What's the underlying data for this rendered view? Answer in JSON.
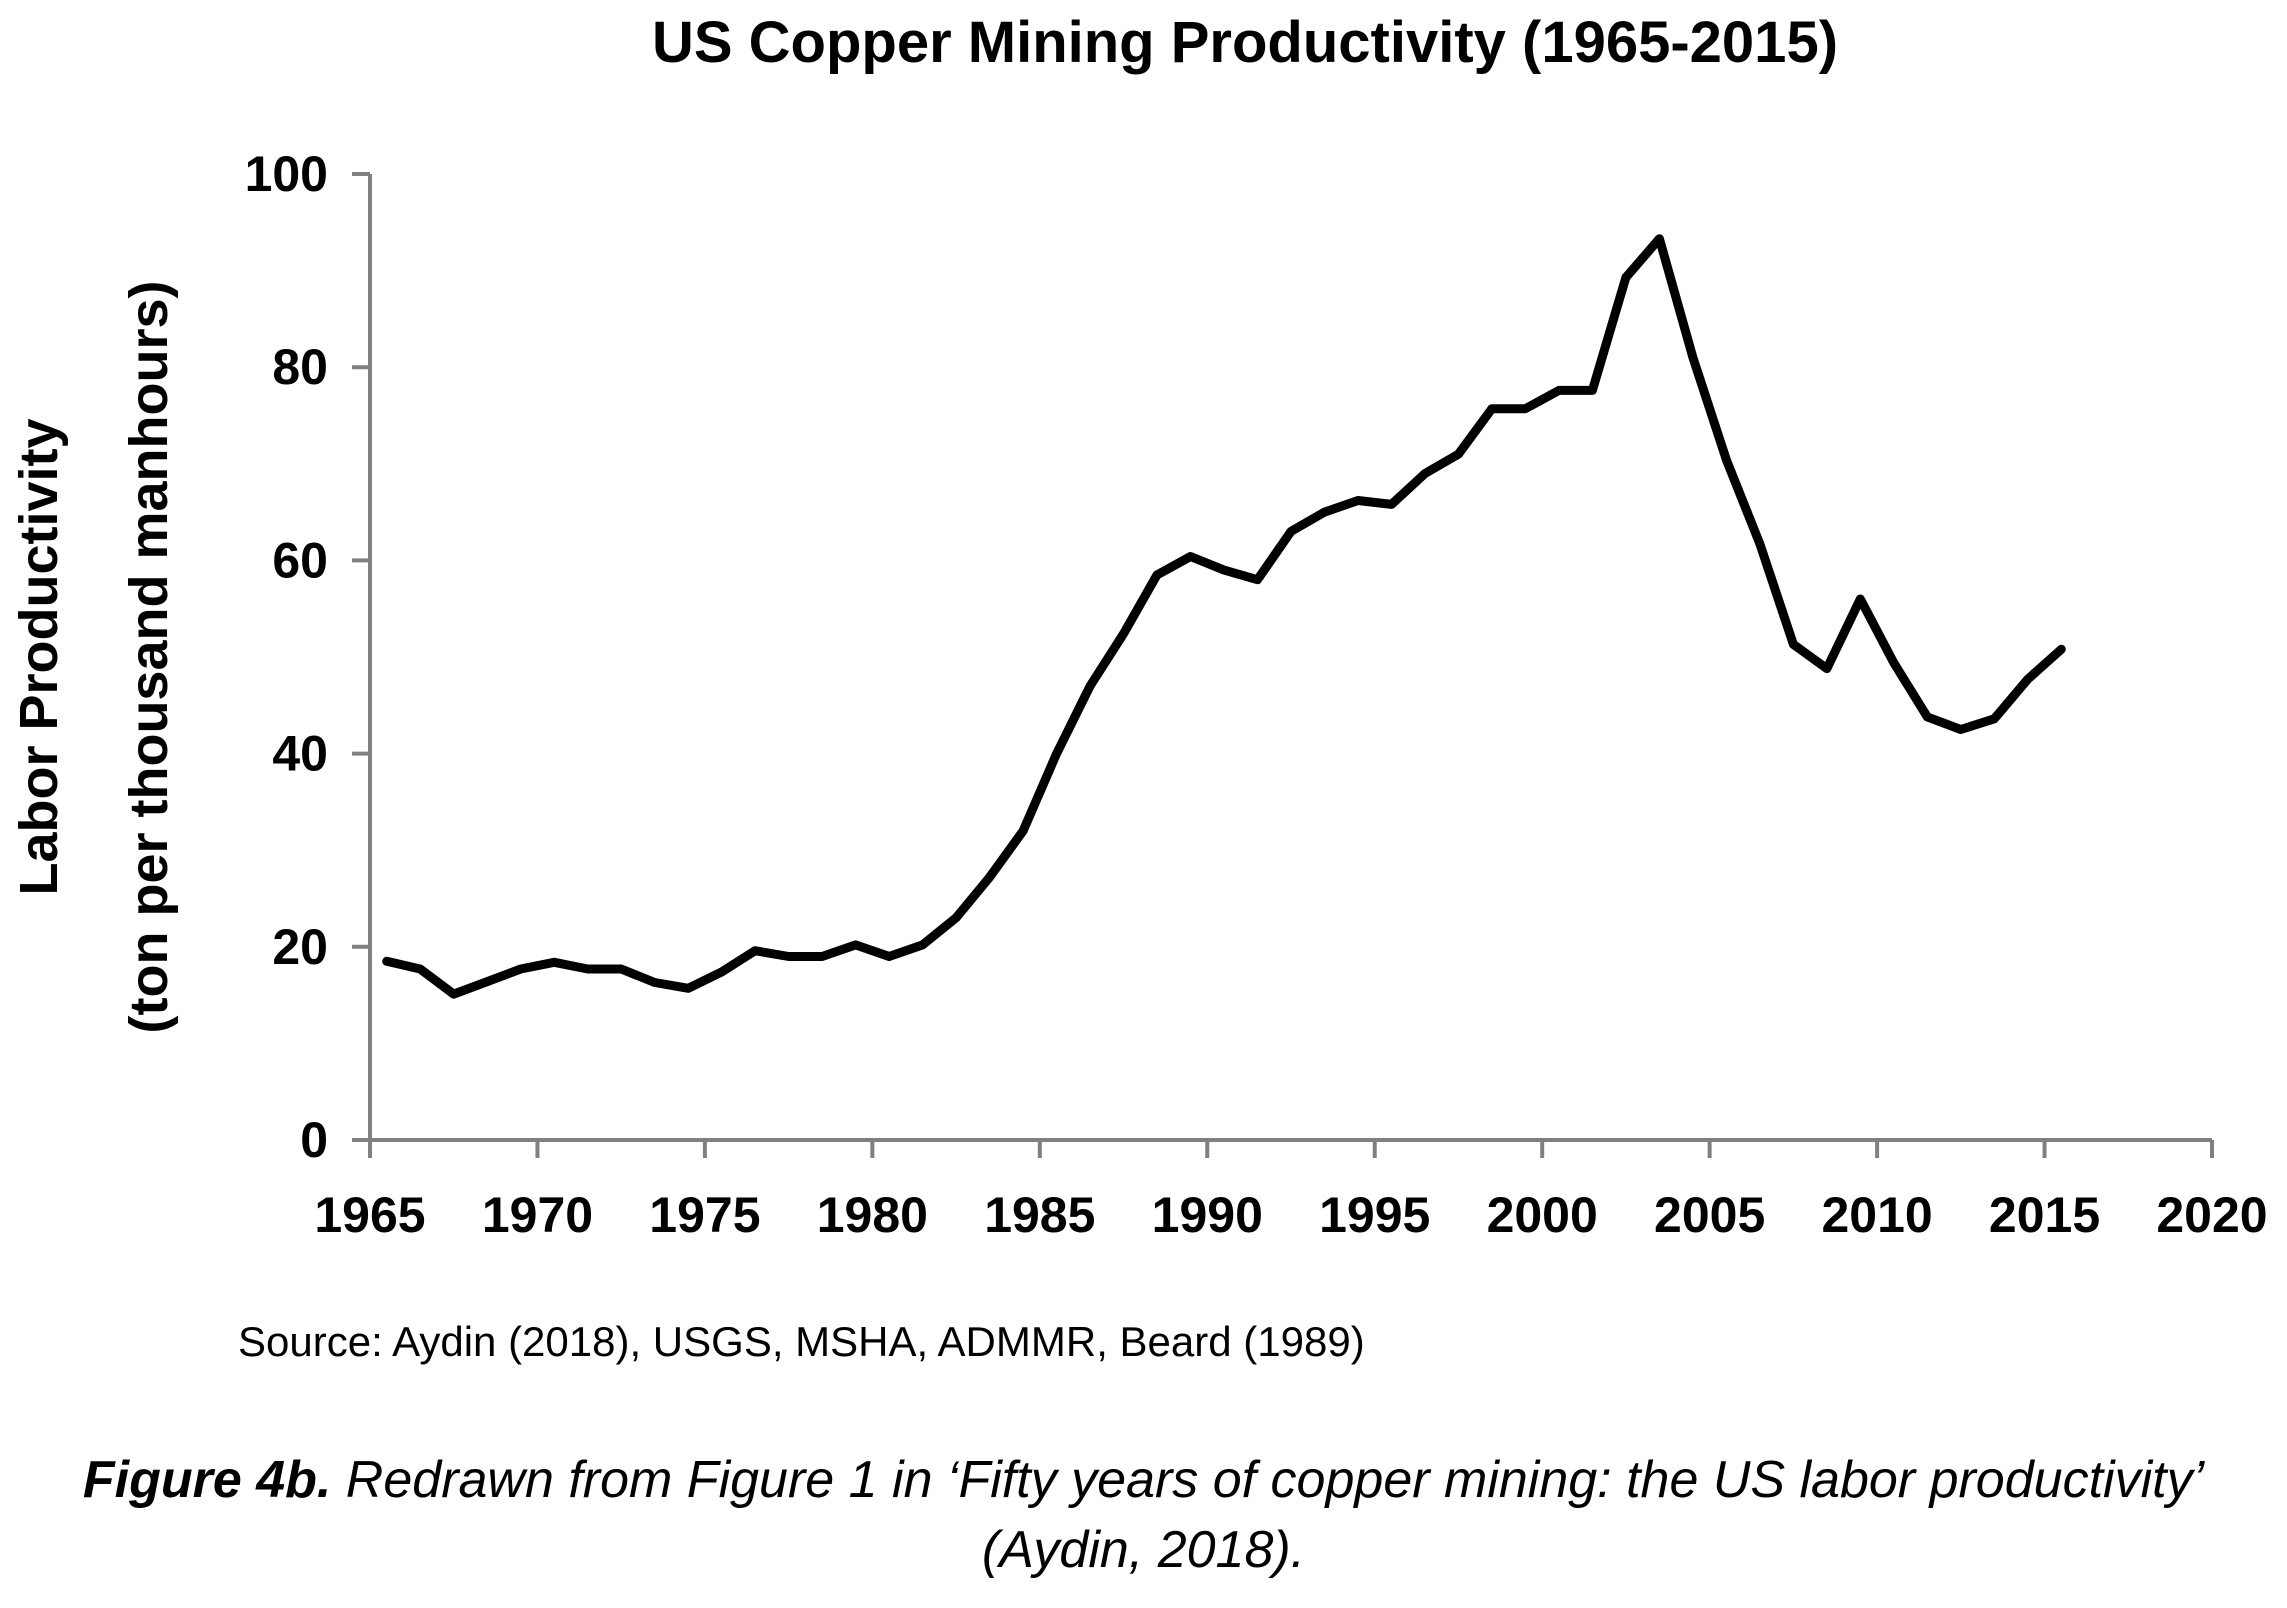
{
  "chart_data": {
    "type": "line",
    "title": "US Copper Mining Productivity (1965-2015)",
    "xlabel": "",
    "ylabel_line1": "Labor Productivity",
    "ylabel_line2": "(ton per thousand manhours)",
    "xlim": [
      1965,
      2020
    ],
    "ylim": [
      0,
      100
    ],
    "x_ticks": [
      1965,
      1970,
      1975,
      1980,
      1985,
      1990,
      1995,
      2000,
      2005,
      2010,
      2015,
      2020
    ],
    "y_ticks": [
      0,
      20,
      40,
      60,
      80,
      100
    ],
    "grid": false,
    "legend": "none",
    "line_color": "#000000",
    "series": [
      {
        "x": [
          1965,
          1966,
          1967,
          1968,
          1969,
          1970,
          1971,
          1972,
          1973,
          1974,
          1975,
          1976,
          1977,
          1978,
          1979,
          1980,
          1981,
          1982,
          1983,
          1984,
          1985,
          1986,
          1987,
          1988,
          1989,
          1990,
          1991,
          1992,
          1993,
          1994,
          1995,
          1996,
          1997,
          1998,
          1999,
          2000,
          2001,
          2002,
          2003,
          2004,
          2005,
          2006,
          2007,
          2008,
          2009,
          2010,
          2011,
          2012,
          2013,
          2014,
          2015
        ],
        "y": [
          18.5,
          17.7,
          15.1,
          16.4,
          17.7,
          18.4,
          17.7,
          17.7,
          16.3,
          15.7,
          17.4,
          19.6,
          19.0,
          19.0,
          20.2,
          19.0,
          20.2,
          23.0,
          27.2,
          32.0,
          40.0,
          47.0,
          52.4,
          58.5,
          60.4,
          59.0,
          58.0,
          63.0,
          65.0,
          66.2,
          65.8,
          69.0,
          71.0,
          75.7,
          75.7,
          77.6,
          77.6,
          89.3,
          93.3,
          81.0,
          70.4,
          61.7,
          51.3,
          48.8,
          56.0,
          49.4,
          43.8,
          42.5,
          43.6,
          47.7,
          50.8
        ]
      }
    ],
    "source": "Source: Aydin (2018), USGS, MSHA, ADMMR, Beard (1989)"
  },
  "caption": {
    "label": "Figure 4b.",
    "text": " Redrawn from Figure 1 in ‘Fifty years of copper mining: the US labor productivity’ (Aydin, 2018)."
  }
}
